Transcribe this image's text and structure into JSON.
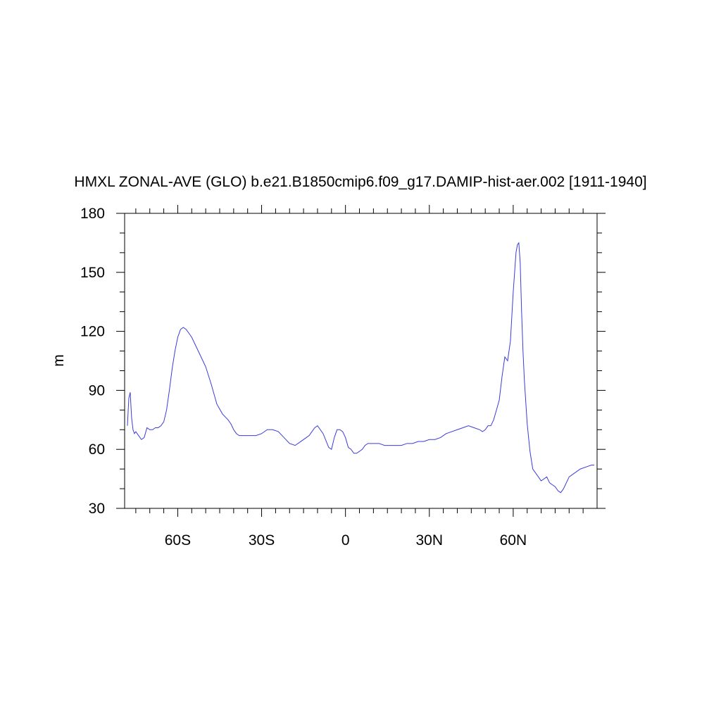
{
  "chart_data": {
    "type": "line",
    "title": "HMXL ZONAL-AVE (GLO) b.e21.B1850cmip6.f09_g17.DAMIP-hist-aer.002 [1911-1940]",
    "xlabel": "",
    "ylabel": "m",
    "xlim": [
      -79,
      90
    ],
    "ylim": [
      30,
      180
    ],
    "x_ticks": [
      {
        "value": -60,
        "label": "60S"
      },
      {
        "value": -30,
        "label": "30S"
      },
      {
        "value": 0,
        "label": "0"
      },
      {
        "value": 30,
        "label": "30N"
      },
      {
        "value": 60,
        "label": "60N"
      }
    ],
    "x_minor_ticks": [
      -75,
      -70,
      -65,
      -55,
      -50,
      -45,
      -40,
      -35,
      -25,
      -20,
      -15,
      -10,
      -5,
      5,
      10,
      15,
      20,
      25,
      35,
      40,
      45,
      50,
      55,
      65,
      70,
      75,
      80,
      85
    ],
    "y_ticks": [
      30,
      60,
      90,
      120,
      150,
      180
    ],
    "y_minor_step": 10,
    "grid": false,
    "line_color": "#3b3bdc",
    "series": [
      {
        "x": [
          -78,
          -77.5,
          -77,
          -76.5,
          -76,
          -75.5,
          -75,
          -74,
          -73,
          -72,
          -71,
          -70,
          -69,
          -68,
          -67,
          -66,
          -65,
          -64,
          -63,
          -62,
          -61,
          -60,
          -59,
          -58,
          -57,
          -56,
          -55,
          -54,
          -53,
          -52,
          -51,
          -50,
          -48,
          -46,
          -44,
          -42,
          -41,
          -40,
          -39,
          -38,
          -37,
          -36,
          -35,
          -34,
          -33,
          -32,
          -30,
          -28,
          -26,
          -24,
          -22,
          -20,
          -18,
          -16,
          -14,
          -13,
          -12,
          -11,
          -10,
          -8,
          -6,
          -5,
          -4,
          -3,
          -2,
          -1,
          0,
          1,
          2,
          3,
          4,
          5,
          6,
          7,
          8,
          9,
          10,
          12,
          14,
          16,
          18,
          20,
          22,
          24,
          26,
          28,
          30,
          32,
          34,
          36,
          38,
          40,
          42,
          44,
          46,
          48,
          49,
          50,
          51,
          52,
          53,
          54,
          55,
          56,
          57,
          58,
          59,
          60,
          61,
          61.5,
          62,
          62.5,
          63,
          63.5,
          64,
          65,
          66,
          67,
          68,
          69,
          70,
          71,
          72,
          73,
          74,
          75,
          76,
          77,
          78,
          79,
          80,
          82,
          84,
          86,
          88,
          89
        ],
        "y": [
          72,
          86,
          89,
          76,
          70,
          68,
          69,
          67,
          65,
          66,
          71,
          70,
          70,
          71,
          71,
          72,
          74,
          80,
          90,
          101,
          110,
          117,
          121,
          122,
          121,
          119,
          117,
          114,
          111,
          108,
          105,
          102,
          93,
          83,
          78,
          75,
          73,
          70,
          68,
          67,
          67,
          67,
          67,
          67,
          67,
          67,
          68,
          70,
          70,
          69,
          66,
          63,
          62,
          64,
          66,
          67,
          69,
          71,
          72,
          68,
          61,
          60,
          66,
          70,
          70,
          69,
          66,
          61,
          60,
          58,
          58,
          59,
          60,
          62,
          63,
          63,
          63,
          63,
          62,
          62,
          62,
          62,
          63,
          63,
          64,
          64,
          65,
          65,
          66,
          68,
          69,
          70,
          71,
          72,
          71,
          70,
          69,
          70,
          72,
          72,
          75,
          80,
          85,
          97,
          107,
          105,
          115,
          140,
          160,
          164,
          165,
          155,
          130,
          110,
          95,
          73,
          59,
          50,
          48,
          46,
          44,
          45,
          46,
          43,
          42,
          41,
          39,
          38,
          40,
          43,
          46,
          48,
          50,
          51,
          52,
          52
        ]
      }
    ]
  }
}
